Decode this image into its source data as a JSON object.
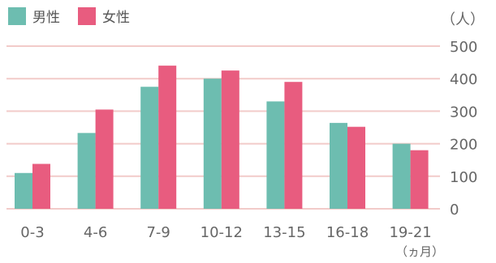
{
  "chart_data": {
    "type": "bar",
    "categories": [
      "0-3",
      "4-6",
      "7-9",
      "10-12",
      "13-15",
      "16-18",
      "19-21"
    ],
    "series": [
      {
        "name": "男性",
        "values": [
          110,
          233,
          375,
          400,
          330,
          264,
          200
        ],
        "color": "#6dbdb0"
      },
      {
        "name": "女性",
        "values": [
          138,
          305,
          440,
          425,
          390,
          252,
          180
        ],
        "color": "#e85c7f"
      }
    ],
    "y_unit": "（人）",
    "x_unit": "（ヵ月）",
    "ylim": [
      0,
      500
    ],
    "yticks": [
      0,
      100,
      200,
      300,
      400,
      500
    ],
    "grid": true,
    "legend_position": "top-left",
    "gridline_color": "#f2cbc9",
    "axis_text_color": "#666666"
  }
}
